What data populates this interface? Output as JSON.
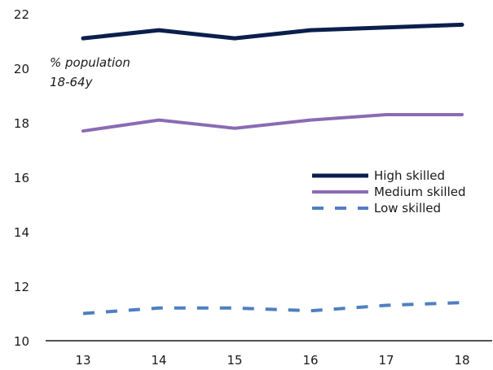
{
  "chart_data": {
    "type": "line",
    "x": [
      "13",
      "14",
      "15",
      "16",
      "17",
      "18"
    ],
    "ylim": [
      10,
      22
    ],
    "yticks": [
      10,
      12,
      14,
      16,
      18,
      20,
      22
    ],
    "grid": false,
    "legend_position": "right-middle",
    "annotation": [
      "% population",
      "18-64y"
    ],
    "series": [
      {
        "name": "High skilled",
        "values": [
          21.1,
          21.4,
          21.1,
          21.4,
          21.5,
          21.6
        ],
        "color": "#0b1f4d",
        "style": "solid"
      },
      {
        "name": "Medium skilled",
        "values": [
          17.7,
          18.1,
          17.8,
          18.1,
          18.3,
          18.3
        ],
        "color": "#8b6bb3",
        "style": "solid"
      },
      {
        "name": "Low skilled",
        "values": [
          11.0,
          11.2,
          11.2,
          11.1,
          11.3,
          11.4
        ],
        "color": "#4f7fc0",
        "style": "dashed"
      }
    ]
  }
}
